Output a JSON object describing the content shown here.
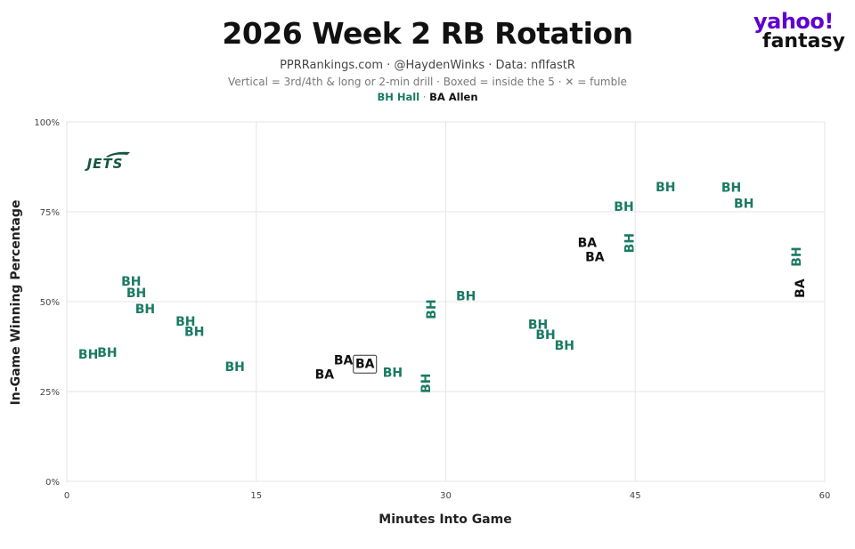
{
  "header": {
    "title": "2026 Week 2 RB Rotation",
    "subtitle": "PPRRankings.com · @HaydenWinks · Data: nflfastR",
    "note": "Vertical = 3rd/4th & long or 2-min drill · Boxed = inside the 5 · ✕ = fumble"
  },
  "logo": {
    "line1": "yahoo!",
    "line2": "fantasy",
    "team": "JETS"
  },
  "colors": {
    "BH": "#1a7a63",
    "BA": "#111111",
    "grid": "#e6e6e6",
    "axis": "#cccccc",
    "team": "#125740"
  },
  "legend": [
    {
      "label": "BH Hall",
      "color": "#1a7a63"
    },
    {
      "label": "BA Allen",
      "color": "#111111"
    }
  ],
  "chart_data": {
    "type": "scatter",
    "title": "2026 Week 2 RB Rotation",
    "xlabel": "Minutes Into Game",
    "ylabel": "In-Game Winning Percentage",
    "xlim": [
      0,
      60
    ],
    "ylim": [
      0,
      100
    ],
    "xticks": [
      0,
      15,
      30,
      45,
      60
    ],
    "yticks": [
      0,
      25,
      50,
      75,
      100
    ],
    "ytick_labels": [
      "0%",
      "25%",
      "50%",
      "75%",
      "100%"
    ],
    "grid": true,
    "series": [
      {
        "name": "BH Hall",
        "label": "BH",
        "points": [
          {
            "x": 1.7,
            "y": 35.2
          },
          {
            "x": 3.2,
            "y": 35.6
          },
          {
            "x": 5.1,
            "y": 55.4
          },
          {
            "x": 5.5,
            "y": 52.2
          },
          {
            "x": 6.2,
            "y": 47.8
          },
          {
            "x": 9.4,
            "y": 44.3
          },
          {
            "x": 10.1,
            "y": 41.4
          },
          {
            "x": 13.3,
            "y": 31.7
          },
          {
            "x": 25.8,
            "y": 30.1
          },
          {
            "x": 28.5,
            "y": 27.3,
            "vertical": true
          },
          {
            "x": 28.9,
            "y": 47.9,
            "vertical": true
          },
          {
            "x": 31.6,
            "y": 51.4
          },
          {
            "x": 37.3,
            "y": 43.5
          },
          {
            "x": 37.9,
            "y": 40.6
          },
          {
            "x": 39.4,
            "y": 37.6
          },
          {
            "x": 44.1,
            "y": 76.2
          },
          {
            "x": 44.6,
            "y": 66.3,
            "vertical": true
          },
          {
            "x": 47.4,
            "y": 81.7
          },
          {
            "x": 52.6,
            "y": 81.5
          },
          {
            "x": 53.6,
            "y": 77.1
          },
          {
            "x": 57.8,
            "y": 62.5,
            "vertical": true
          }
        ]
      },
      {
        "name": "BA Allen",
        "label": "BA",
        "points": [
          {
            "x": 20.4,
            "y": 29.6
          },
          {
            "x": 21.9,
            "y": 33.5
          },
          {
            "x": 23.6,
            "y": 32.6,
            "boxed": true
          },
          {
            "x": 41.2,
            "y": 66.2
          },
          {
            "x": 41.8,
            "y": 62.2
          },
          {
            "x": 58.1,
            "y": 53.7,
            "vertical": true
          }
        ]
      }
    ]
  }
}
